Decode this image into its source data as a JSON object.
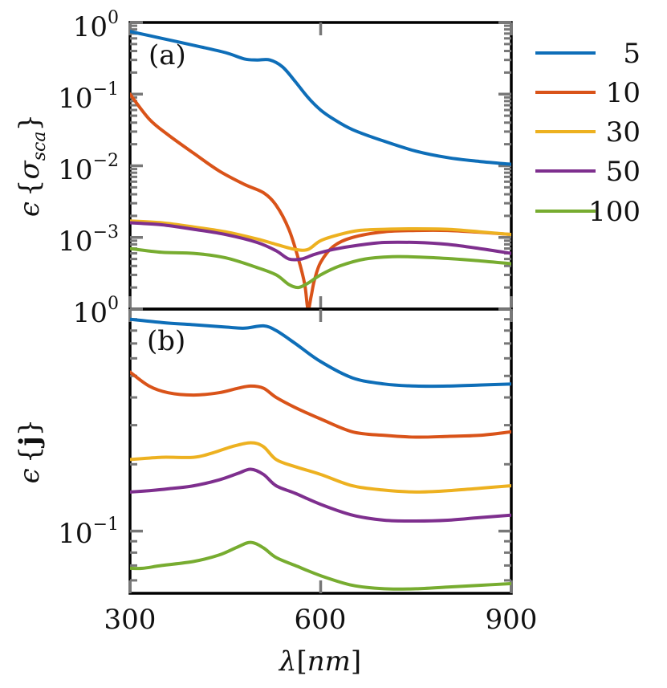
{
  "chart_data": [
    {
      "panel": "(a)",
      "type": "line",
      "yscale": "log",
      "xlim": [
        300,
        900
      ],
      "ylim_exp": [
        -4,
        0
      ],
      "ylabel": "ε{σ_sca}",
      "y_tick_labels": [
        {
          "base": "10",
          "exp": "0",
          "value_exp": 0
        },
        {
          "base": "10",
          "exp": "−1",
          "value_exp": -1
        },
        {
          "base": "10",
          "exp": "−2",
          "value_exp": -2
        },
        {
          "base": "10",
          "exp": "−3",
          "value_exp": -3
        }
      ],
      "series": [
        {
          "name": "5",
          "color": "#0e6eb8",
          "x": [
            300,
            350,
            400,
            450,
            480,
            500,
            520,
            540,
            560,
            580,
            600,
            620,
            650,
            700,
            750,
            800,
            850,
            900
          ],
          "y": [
            0.75,
            0.6,
            0.48,
            0.38,
            0.31,
            0.3,
            0.3,
            0.24,
            0.15,
            0.09,
            0.06,
            0.045,
            0.032,
            0.022,
            0.016,
            0.013,
            0.0115,
            0.0105
          ]
        },
        {
          "name": "10",
          "color": "#d95319",
          "x": [
            300,
            330,
            360,
            400,
            440,
            480,
            510,
            530,
            550,
            565,
            575,
            580,
            585,
            590,
            600,
            620,
            650,
            700,
            750,
            800,
            850,
            900
          ],
          "y": [
            0.1,
            0.045,
            0.027,
            0.015,
            0.0085,
            0.0055,
            0.0042,
            0.0028,
            0.0013,
            0.0005,
            0.00022,
            0.0001,
            0.00015,
            0.00025,
            0.00045,
            0.00075,
            0.001,
            0.0012,
            0.00125,
            0.00125,
            0.00118,
            0.0011
          ]
        },
        {
          "name": "30",
          "color": "#edb120",
          "x": [
            300,
            350,
            400,
            450,
            500,
            530,
            560,
            580,
            600,
            630,
            660,
            700,
            750,
            800,
            850,
            900
          ],
          "y": [
            0.0017,
            0.0016,
            0.0014,
            0.0012,
            0.00095,
            0.0008,
            0.00068,
            0.00068,
            0.0009,
            0.0011,
            0.00125,
            0.0013,
            0.00132,
            0.0013,
            0.0012,
            0.0011
          ]
        },
        {
          "name": "50",
          "color": "#7e2f8e",
          "x": [
            300,
            350,
            400,
            450,
            500,
            530,
            550,
            570,
            590,
            620,
            660,
            700,
            750,
            800,
            850,
            900
          ],
          "y": [
            0.0016,
            0.0015,
            0.0013,
            0.0011,
            0.00085,
            0.00065,
            0.0005,
            0.0005,
            0.00058,
            0.00068,
            0.00078,
            0.00085,
            0.00085,
            0.0008,
            0.0007,
            0.0006
          ]
        },
        {
          "name": "100",
          "color": "#77ac30",
          "x": [
            300,
            350,
            400,
            450,
            500,
            530,
            550,
            565,
            580,
            600,
            630,
            670,
            720,
            780,
            840,
            900
          ],
          "y": [
            0.0007,
            0.00062,
            0.0006,
            0.00052,
            0.00038,
            0.0003,
            0.00022,
            0.0002,
            0.00023,
            0.0003,
            0.0004,
            0.0005,
            0.00054,
            0.00052,
            0.00048,
            0.00043
          ]
        }
      ]
    },
    {
      "panel": "(b)",
      "type": "line",
      "yscale": "log",
      "xlim": [
        300,
        900
      ],
      "ylim_exp": [
        -1.28,
        0
      ],
      "ylabel": "ε{j}",
      "y_tick_labels": [
        {
          "base": "10",
          "exp": "0",
          "value_exp": 0
        },
        {
          "base": "10",
          "exp": "−1",
          "value_exp": -1
        }
      ],
      "series": [
        {
          "name": "5",
          "color": "#0e6eb8",
          "x": [
            300,
            350,
            400,
            450,
            480,
            510,
            530,
            560,
            600,
            650,
            700,
            750,
            800,
            850,
            900
          ],
          "y": [
            0.9,
            0.87,
            0.85,
            0.83,
            0.82,
            0.84,
            0.8,
            0.7,
            0.58,
            0.49,
            0.46,
            0.45,
            0.45,
            0.455,
            0.46
          ]
        },
        {
          "name": "10",
          "color": "#d95319",
          "x": [
            300,
            330,
            360,
            400,
            440,
            470,
            490,
            510,
            530,
            560,
            600,
            650,
            700,
            750,
            800,
            850,
            900
          ],
          "y": [
            0.52,
            0.45,
            0.42,
            0.41,
            0.42,
            0.44,
            0.45,
            0.44,
            0.4,
            0.36,
            0.32,
            0.28,
            0.27,
            0.265,
            0.267,
            0.27,
            0.28
          ]
        },
        {
          "name": "30",
          "color": "#edb120",
          "x": [
            300,
            350,
            400,
            430,
            460,
            490,
            510,
            530,
            560,
            600,
            650,
            700,
            750,
            800,
            850,
            900
          ],
          "y": [
            0.21,
            0.215,
            0.215,
            0.225,
            0.24,
            0.25,
            0.24,
            0.21,
            0.195,
            0.18,
            0.16,
            0.153,
            0.15,
            0.152,
            0.156,
            0.16
          ]
        },
        {
          "name": "50",
          "color": "#7e2f8e",
          "x": [
            300,
            330,
            360,
            400,
            440,
            470,
            490,
            510,
            530,
            560,
            600,
            650,
            700,
            750,
            800,
            850,
            900
          ],
          "y": [
            0.15,
            0.152,
            0.155,
            0.16,
            0.17,
            0.182,
            0.19,
            0.18,
            0.16,
            0.148,
            0.132,
            0.118,
            0.112,
            0.111,
            0.112,
            0.115,
            0.118
          ]
        },
        {
          "name": "100",
          "color": "#77ac30",
          "x": [
            300,
            320,
            350,
            400,
            440,
            470,
            490,
            510,
            530,
            560,
            600,
            650,
            700,
            750,
            800,
            850,
            900
          ],
          "y": [
            0.068,
            0.068,
            0.07,
            0.073,
            0.078,
            0.085,
            0.089,
            0.084,
            0.076,
            0.07,
            0.063,
            0.057,
            0.055,
            0.055,
            0.056,
            0.057,
            0.058
          ]
        }
      ]
    }
  ],
  "x_ticks": [
    300,
    600,
    900
  ],
  "x_tick_labels": [
    "300",
    "600",
    "900"
  ],
  "xlabel_parts": [
    "λ",
    "[",
    "nm",
    "]"
  ],
  "ylabel_a_parts": [
    "ϵ",
    "{",
    "σ",
    "sca",
    "}"
  ],
  "ylabel_b_parts": [
    "ϵ",
    "{",
    "j",
    "}"
  ],
  "legend": [
    "5",
    "10",
    "30",
    "50",
    "100"
  ],
  "legend_position": "right, outside",
  "colors": {
    "s5": "#0e6eb8",
    "s10": "#d95319",
    "s30": "#edb120",
    "s50": "#7e2f8e",
    "s100": "#77ac30"
  }
}
